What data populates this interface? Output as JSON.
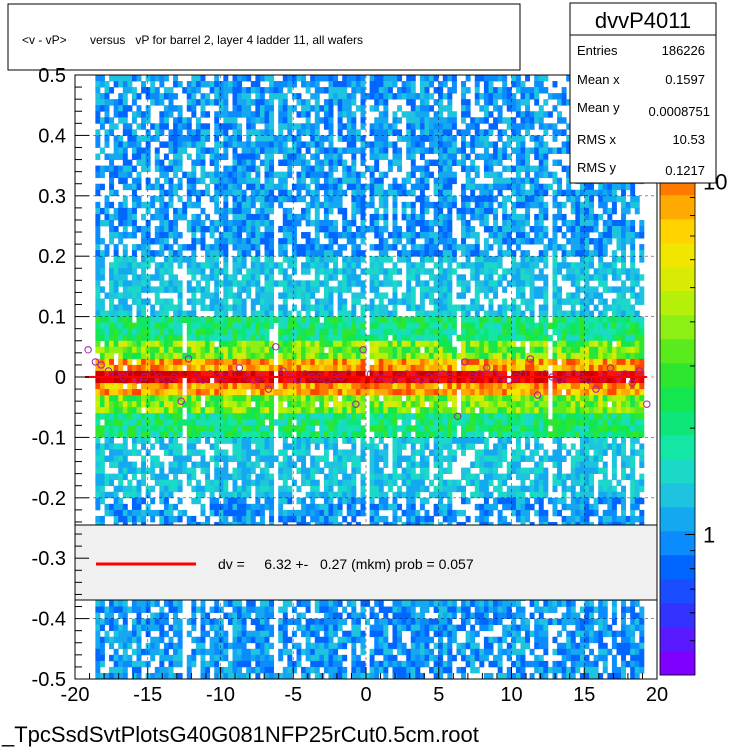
{
  "chart_data": {
    "type": "heatmap",
    "title": "<v - vP>       versus   vP for barrel 2, layer 4 ladder 11, all wafers",
    "xlabel": "",
    "ylabel": "",
    "xlim": [
      -20,
      20
    ],
    "ylim": [
      -0.5,
      0.5
    ],
    "x_ticks": [
      "-20",
      "-15",
      "-10",
      "-5",
      "0",
      "5",
      "10",
      "15",
      "20"
    ],
    "y_ticks": [
      "-0.5",
      "-0.4",
      "-0.3",
      "-0.2",
      "-0.1",
      "0",
      "0.1",
      "0.2",
      "0.3",
      "0.4",
      "0.5"
    ],
    "z_scale": "log",
    "z_ticks": [
      "1",
      "10"
    ],
    "z_tick_values": [
      1,
      10
    ],
    "zlim": [
      0.4,
      20
    ],
    "grid": true,
    "stats": {
      "name": "dvvP4011",
      "rows": [
        {
          "label": "Entries",
          "value": "186226"
        },
        {
          "label": "Mean x",
          "value": "0.1597"
        },
        {
          "label": "Mean y",
          "value": "0.0008751"
        },
        {
          "label": "RMS x",
          "value": "10.53"
        },
        {
          "label": "RMS y",
          "value": "0.1217"
        }
      ]
    },
    "legend": {
      "text": "dv =     6.32 +-   0.27 (mkm) prob = 0.057",
      "color": "#ff0000"
    },
    "profile_points": {
      "x": [
        -19.1,
        -18.6,
        -18.2,
        -17.7,
        -17.2,
        -16.7,
        -16.2,
        -15.7,
        -15.2,
        -14.7,
        -14.2,
        -13.7,
        -13.2,
        -12.7,
        -12.2,
        -11.7,
        -11.2,
        -10.7,
        -10.2,
        -9.7,
        -9.2,
        -8.7,
        -8.2,
        -7.7,
        -7.2,
        -6.7,
        -6.2,
        -5.7,
        -5.2,
        -4.7,
        -4.2,
        -3.7,
        -3.2,
        -2.7,
        -2.2,
        -1.7,
        -1.2,
        -0.7,
        -0.2,
        0.3,
        0.8,
        1.3,
        1.8,
        2.3,
        2.8,
        3.3,
        3.8,
        4.3,
        4.8,
        5.3,
        5.8,
        6.3,
        6.8,
        7.3,
        7.8,
        8.3,
        8.8,
        9.3,
        9.8,
        10.3,
        10.8,
        11.3,
        11.8,
        12.3,
        12.8,
        13.3,
        13.8,
        14.3,
        14.8,
        15.3,
        15.8,
        16.3,
        16.8,
        17.3,
        17.8,
        18.3,
        18.8,
        19.3
      ],
      "y": [
        0.045,
        0.025,
        0.02,
        0.01,
        0.005,
        0.0,
        0.005,
        -0.005,
        0.0,
        0.005,
        0.0,
        -0.005,
        0.0,
        -0.04,
        0.03,
        0.0,
        -0.005,
        0.005,
        0.0,
        0.0,
        0.005,
        0.015,
        0.0,
        -0.005,
        0.0,
        -0.02,
        0.05,
        0.01,
        0.0,
        -0.005,
        0.005,
        0.0,
        0.0,
        -0.005,
        0.0,
        0.0,
        0.005,
        -0.045,
        0.045,
        0.005,
        0.0,
        0.0,
        -0.005,
        0.0,
        0.005,
        0.0,
        -0.005,
        0.0,
        0.0,
        0.005,
        0.0,
        -0.065,
        0.025,
        0.0,
        0.005,
        0.015,
        0.005,
        0.0,
        -0.005,
        0.0,
        0.005,
        0.03,
        -0.03,
        0.005,
        0.0,
        -0.005,
        0.0,
        0.005,
        0.0,
        -0.005,
        -0.02,
        0.0,
        0.015,
        0.0,
        0.005,
        -0.01,
        0.01,
        -0.045
      ]
    }
  },
  "footer": {
    "filename": "_TpcSsdSvtPlotsG40G081NFP25rCut0.5cm.root"
  },
  "colors": {
    "frame": "#000000",
    "legend_bg": "#f0f0f0",
    "palette": [
      "#7f00ff",
      "#5a1aff",
      "#3333ff",
      "#1a4dff",
      "#0066ff",
      "#0a8cff",
      "#14a8f0",
      "#1ec3e0",
      "#1ad9c8",
      "#14e6a6",
      "#0fe67a",
      "#14e650",
      "#2ee62e",
      "#5aeb1e",
      "#8cf014",
      "#b4f00a",
      "#d7eb05",
      "#f0e600",
      "#ffd200",
      "#ffaa00",
      "#ff7800",
      "#ff4600",
      "#ff1400",
      "#e60000",
      "#c80000"
    ]
  }
}
